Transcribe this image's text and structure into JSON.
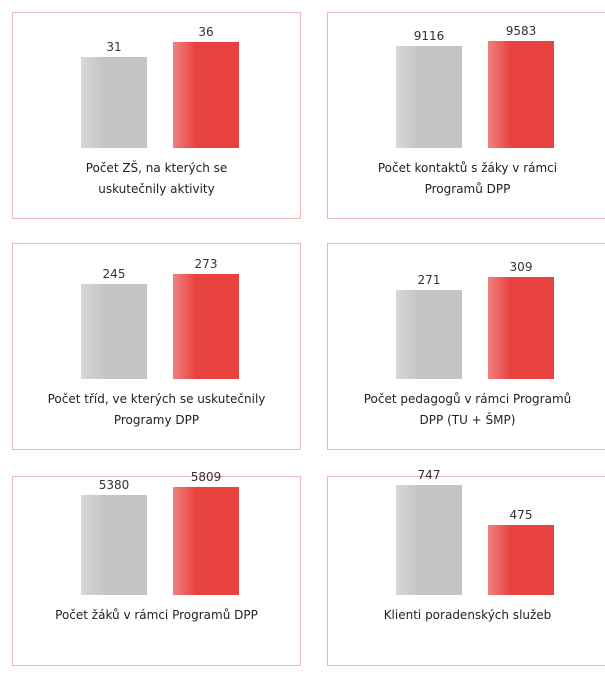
{
  "chart_data": [
    {
      "type": "bar",
      "title": "Počet ZŠ, na kterých se\nuskutečnily aktivity",
      "values": [
        31,
        36
      ],
      "colors": [
        "#c4c4c4",
        "#e8423f"
      ],
      "ylim": [
        0,
        38
      ]
    },
    {
      "type": "bar",
      "title": "Počet kontaktů s žáky v rámci\nProgramů DPP",
      "values": [
        9116,
        9583
      ],
      "colors": [
        "#c4c4c4",
        "#e8423f"
      ],
      "ylim": [
        0,
        10000
      ]
    },
    {
      "type": "bar",
      "title": "Počet tříd, ve kterých se uskutečnily\nProgramy DPP",
      "values": [
        245,
        273
      ],
      "colors": [
        "#c4c4c4",
        "#e8423f"
      ],
      "ylim": [
        0,
        290
      ]
    },
    {
      "type": "bar",
      "title": "Počet pedagogů v rámci Programů\nDPP (TU + ŠMP)",
      "values": [
        271,
        309
      ],
      "colors": [
        "#c4c4c4",
        "#e8423f"
      ],
      "ylim": [
        0,
        340
      ]
    },
    {
      "type": "bar",
      "title": "Počet žáků v rámci Programů DPP",
      "values": [
        5380,
        5809
      ],
      "colors": [
        "#c4c4c4",
        "#e8423f"
      ],
      "ylim": [
        0,
        6000
      ]
    },
    {
      "type": "bar",
      "title": "Klienti poradenských služeb",
      "values": [
        747,
        475
      ],
      "colors": [
        "#c4c4c4",
        "#e8423f"
      ],
      "ylim": [
        0,
        760
      ]
    }
  ]
}
